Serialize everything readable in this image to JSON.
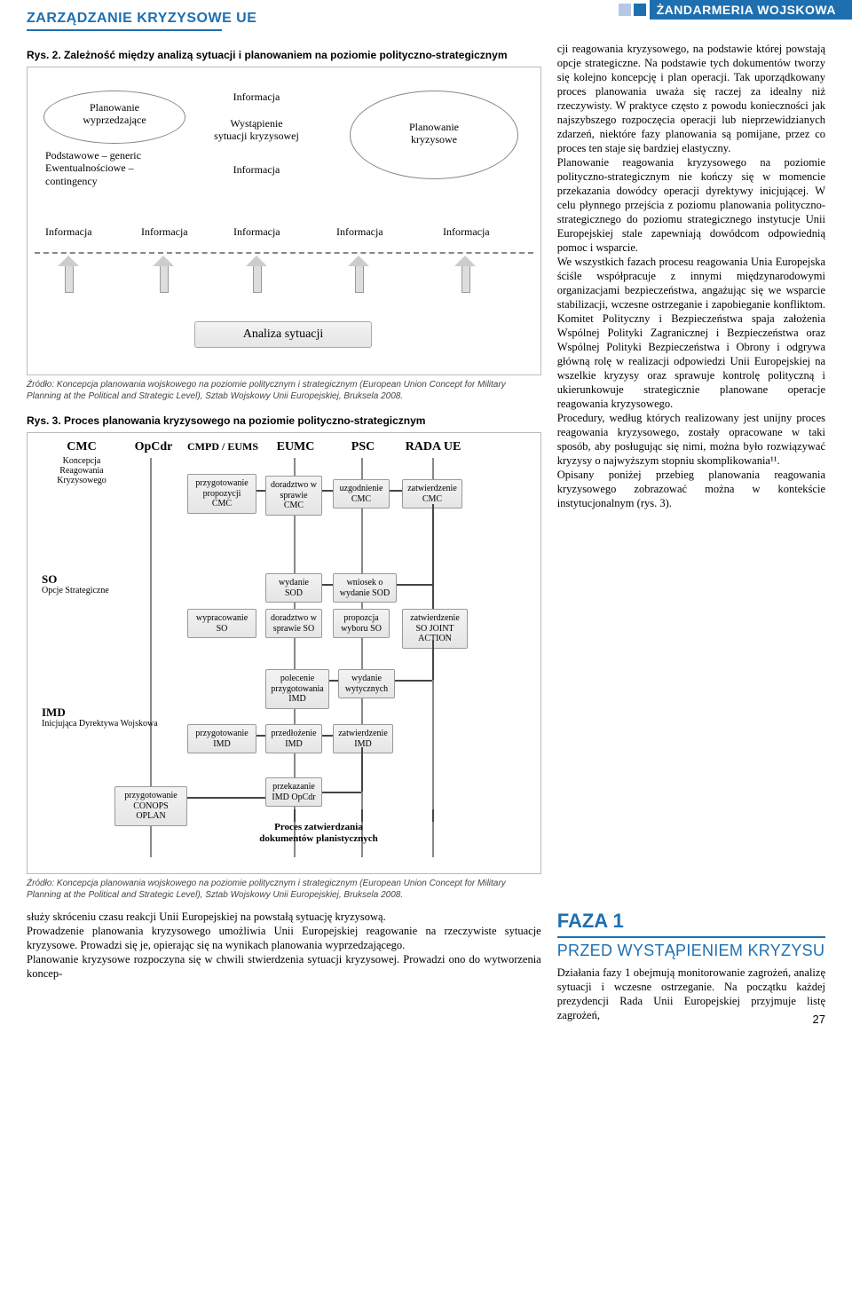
{
  "header": {
    "left_title": "ZARZĄDZANIE KRYZYSOWE UE",
    "right_title": "ŻANDARMERIA WOJSKOWA",
    "square_colors": [
      "#b7c8e5",
      "#1e6fb0"
    ],
    "band_color": "#1e6fb0"
  },
  "figure2": {
    "title": "Rys. 2. Zależność między analizą sytuacji i planowaniem na poziomie polityczno-strategicznym",
    "oval1": {
      "lines": [
        "Planowanie",
        "wyprzedzające"
      ]
    },
    "under_oval1": [
      "Podstawowe – generic",
      "Ewentualnościowe –",
      "contingency"
    ],
    "center_label": [
      "Wystąpienie",
      "sytuacji kryzysowej"
    ],
    "oval2": [
      "Planowanie",
      "kryzysowe"
    ],
    "info": "Informacja",
    "analiza": "Analiza sytuacji"
  },
  "source": "Źródło: Koncepcja planowania wojskowego na poziomie politycznym i strategicznym (European Union Concept for Military Planning at the Political and Strategic Level), Sztab Wojskowy Unii Europejskiej, Bruksela 2008.",
  "figure3": {
    "title": "Rys. 3. Proces planowania kryzysowego na poziomie polityczno-strategicznym",
    "cols": {
      "cmc": {
        "h": "CMC",
        "sub": "Koncepcja Reagowania Kryzysowego"
      },
      "op": "OpCdr",
      "cmpd": "CMPD / EUMS",
      "eumc": "EUMC",
      "psc": "PSC",
      "rada": "RADA UE"
    },
    "row_labels": {
      "so": {
        "h": "SO",
        "sub": "Opcje Strategiczne"
      },
      "imd": {
        "h": "IMD",
        "sub": "Inicjująca Dyrektywa Wojskowa"
      }
    },
    "boxes": {
      "b1": "przygotowanie propozycji CMC",
      "b2": "doradztwo w sprawie CMC",
      "b3": "uzgodnienie CMC",
      "b4": "zatwierdzenie CMC",
      "b5": "wypracowanie SO",
      "b6": "wydanie SOD",
      "b7": "doradztwo w sprawie SO",
      "b8": "wniosek o wydanie SOD",
      "b9": "propozcja wyboru SO",
      "b10": "zatwierdzenie SO JOINT ACTION",
      "b11": "polecenie przygotowania IMD",
      "b12": "wydanie wytycznych",
      "b13": "przygotowanie IMD",
      "b14": "przedłożenie IMD",
      "b15": "zatwierdzenie IMD",
      "b16": "przygotowanie CONOPS OPLAN",
      "b17": "przekazanie IMD OpCdr",
      "b18": "Proces zatwierdzania dokumentów planistycznych"
    }
  },
  "right_text": "cji reagowania kryzysowego, na podstawie której powstają opcje strategiczne. Na podstawie tych dokumentów tworzy się kolejno koncepcję i plan operacji. Tak uporządkowany proces planowania uważa się raczej za idealny niż rzeczywisty. W praktyce często z powodu konieczności jak najszybszego rozpoczęcia operacji lub nieprzewidzianych zdarzeń, niektóre fazy planowania są pomijane, przez co proces ten staje się bardziej elastyczny.\nPlanowanie reagowania kryzysowego na poziomie polityczno-strategicznym nie kończy się w momencie przekazania dowódcy operacji dyrektywy inicjującej. W celu płynnego przejścia z poziomu planowania polityczno-strategicznego do poziomu strategicznego instytucje Unii Europejskiej stale zapewniają dowódcom odpowiednią pomoc i wsparcie.\nWe wszystkich fazach procesu reagowania Unia Europejska ściśle współpracuje z innymi międzynarodowymi organizacjami bezpieczeństwa, angażując się we wsparcie stabilizacji, wczesne ostrzeganie i zapobieganie konfliktom. Komitet Polityczny i Bezpieczeństwa spaja założenia Wspólnej Polityki Zagranicznej i Bezpieczeństwa oraz Wspólnej Polityki Bezpieczeństwa i Obrony i odgrywa główną rolę w realizacji odpowiedzi Unii Europejskiej na wszelkie kryzysy oraz sprawuje kontrolę polityczną i ukierunkowuje strategicznie planowane operacje reagowania kryzysowego.\nProcedury, według których realizowany jest unijny proces reagowania kryzysowego, zostały opracowane w taki sposób, aby posługując się nimi, można było rozwiązywać kryzysy o najwyższym stopniu skomplikowania¹¹.\nOpisany poniżej przebieg planowania reagowania kryzysowego zobrazować można w kontekście instytucjonalnym (rys. 3).",
  "bottom_left": "służy skróceniu czasu reakcji Unii Europejskiej na powstałą sytuację kryzysową.\nProwadzenie planowania kryzysowego umożliwia Unii Europejskiej reagowanie na rzeczywiste sytuacje kryzysowe. Prowadzi się je, opierając się na wynikach planowania wyprzedzającego.\nPlanowanie kryzysowe rozpoczyna się w chwili stwierdzenia sytuacji kryzysowej. Prowadzi ono do wytworzenia koncep-",
  "bottom_right": {
    "faza": "FAZA 1",
    "przed": "PRZED WYSTĄPIENIEM KRYZYSU",
    "text": "Działania fazy 1 obejmują monitorowanie zagrożeń, analizę sytuacji i wczesne ostrzeganie. Na początku każdej prezydencji Rada Unii Europejskiej przyjmuje listę zagrożeń,"
  },
  "page": "27",
  "colors": {
    "blue": "#1e6fb0"
  }
}
